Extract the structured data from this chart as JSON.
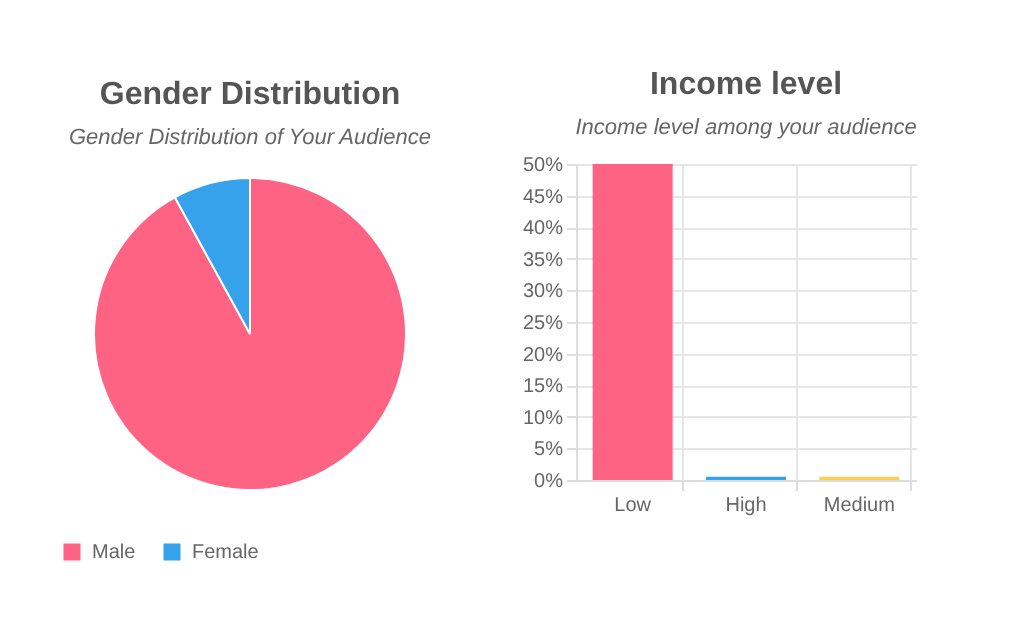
{
  "chart_data": [
    {
      "type": "pie",
      "title": "Gender Distribution",
      "subtitle": "Gender Distribution of Your Audience",
      "categories": [
        "Male",
        "Female"
      ],
      "values": [
        92,
        8
      ],
      "colors": [
        "#ff6384",
        "#36a2eb"
      ],
      "legend": "bottom"
    },
    {
      "type": "bar",
      "title": "Income level",
      "subtitle": "Income level among your audience",
      "categories": [
        "Low",
        "High",
        "Medium"
      ],
      "values": [
        50,
        0.5,
        0.5
      ],
      "colors": [
        "#ff6384",
        "#36a2eb",
        "#ffcd56"
      ],
      "ylim": [
        0,
        50
      ],
      "yticks": [
        {
          "value": 0,
          "label": "0%"
        },
        {
          "value": 5,
          "label": "5%"
        },
        {
          "value": 10,
          "label": "10%"
        },
        {
          "value": 15,
          "label": "15%"
        },
        {
          "value": 20,
          "label": "20%"
        },
        {
          "value": 25,
          "label": "25%"
        },
        {
          "value": 30,
          "label": "30%"
        },
        {
          "value": 35,
          "label": "35%"
        },
        {
          "value": 40,
          "label": "40%"
        },
        {
          "value": 45,
          "label": "45%"
        },
        {
          "value": 50,
          "label": "50%"
        }
      ],
      "grid": true
    }
  ]
}
